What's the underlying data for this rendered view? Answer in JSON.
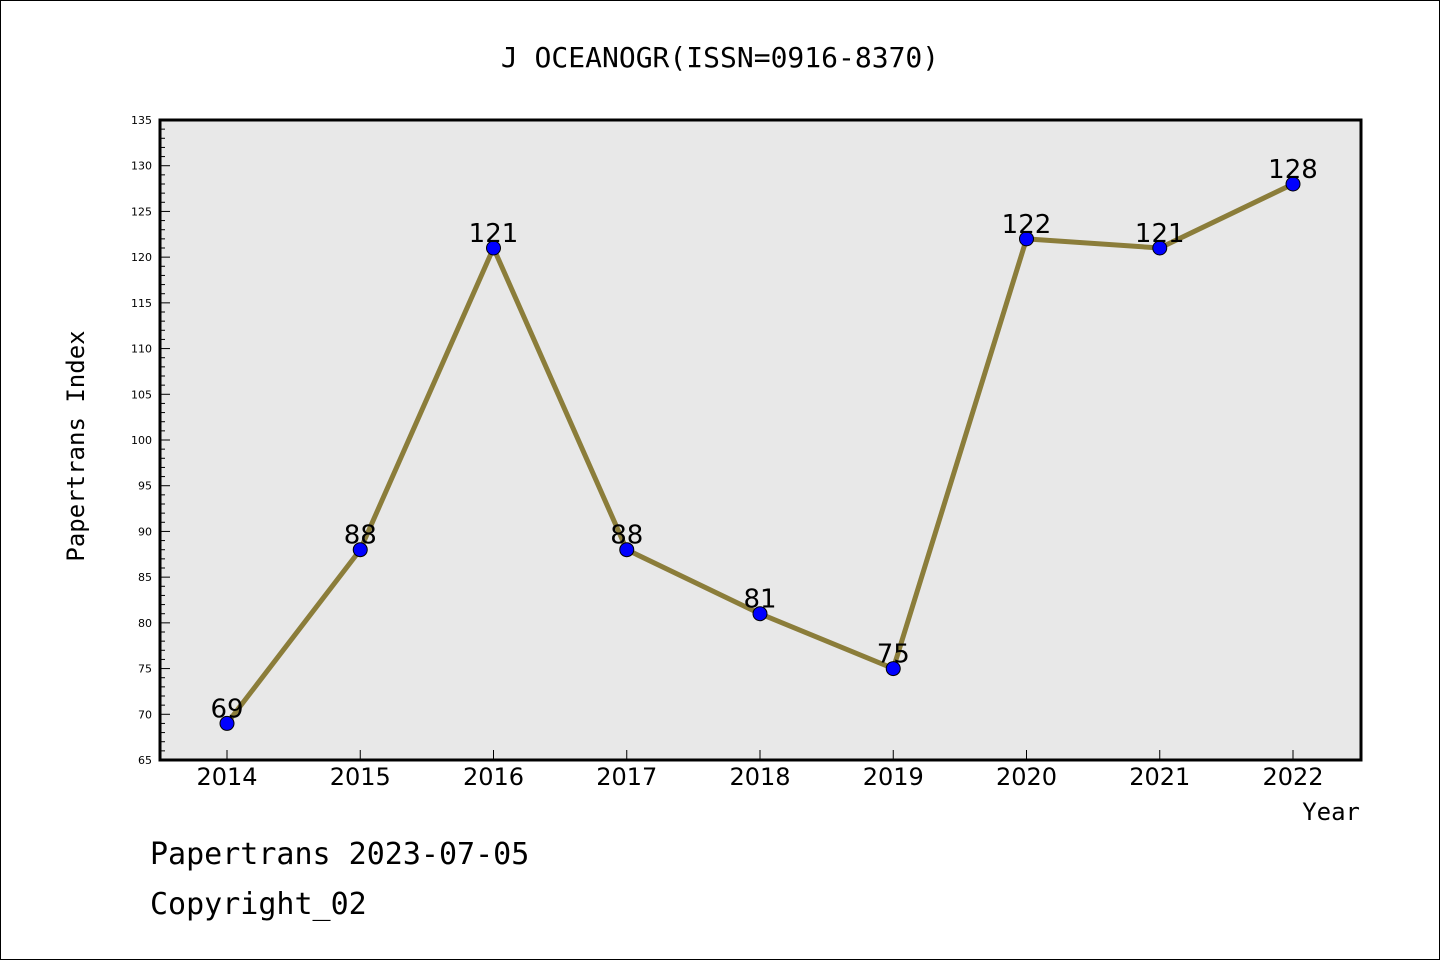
{
  "chart_data": {
    "type": "line",
    "title": "J OCEANOGR(ISSN=0916-8370)",
    "xlabel": "Year",
    "ylabel": "Papertrans Index",
    "categories": [
      "2014",
      "2015",
      "2016",
      "2017",
      "2018",
      "2019",
      "2020",
      "2021",
      "2022"
    ],
    "series": [
      {
        "values": [
          69,
          88,
          121,
          88,
          81,
          75,
          122,
          121,
          128
        ]
      }
    ],
    "data_labels": [
      "69",
      "88",
      "121",
      "88",
      "81",
      "75",
      "122",
      "121",
      "128"
    ],
    "ylim": [
      65,
      135
    ],
    "yticks": [
      "65",
      "70",
      "75",
      "80",
      "85",
      "90",
      "95",
      "100",
      "105",
      "110",
      "115",
      "120",
      "125",
      "130",
      "135"
    ],
    "grid": false,
    "line_color": "#8b7d3a",
    "marker_color": "#0000ff",
    "plot_background": "#e8e8e8"
  },
  "footer": {
    "line1": "Papertrans 2023-07-05",
    "line2": "Copyright_02"
  }
}
